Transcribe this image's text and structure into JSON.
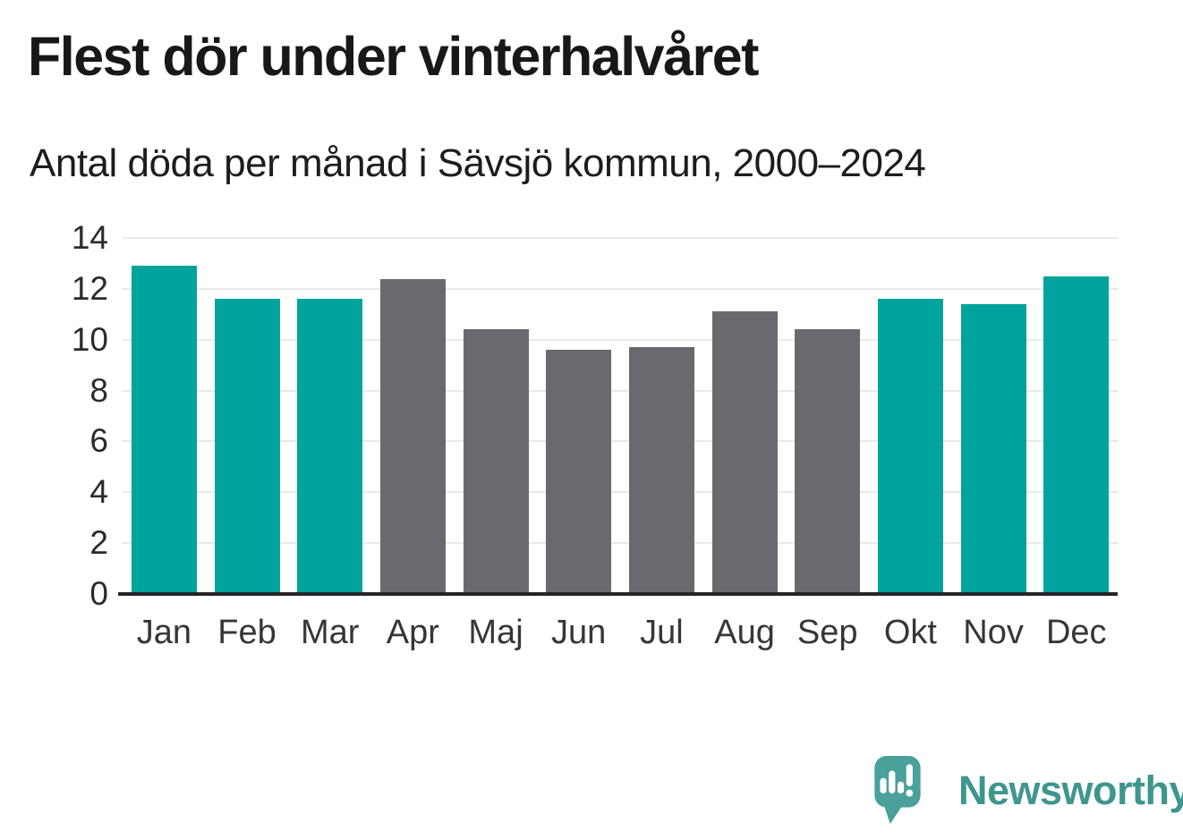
{
  "chart_data": {
    "type": "bar",
    "title": "Flest dör under vinterhalvåret",
    "subtitle": "Antal döda per månad i Sävsjö kommun, 2000–2024",
    "categories": [
      "Jan",
      "Feb",
      "Mar",
      "Apr",
      "Maj",
      "Jun",
      "Jul",
      "Aug",
      "Sep",
      "Okt",
      "Nov",
      "Dec"
    ],
    "values": [
      12.9,
      11.6,
      11.6,
      12.4,
      10.4,
      9.6,
      9.7,
      11.1,
      10.4,
      11.6,
      11.4,
      12.5
    ],
    "bar_colors": [
      "#00a49c",
      "#00a49c",
      "#00a49c",
      "#6c6870",
      "#6c6870",
      "#6c6870",
      "#6c6870",
      "#6c6870",
      "#6c6870",
      "#00a49c",
      "#00a49c",
      "#00a49c"
    ],
    "palette": {
      "winter_highlight": "#00a49c",
      "summer_muted": "#6c6870",
      "gridline": "#e9e9e9",
      "baseline": "#26242a"
    },
    "xlabel": "",
    "ylabel": "",
    "ylim": [
      0,
      14
    ],
    "yticks": [
      0,
      2,
      4,
      6,
      8,
      10,
      12,
      14
    ],
    "grid": true,
    "legend": "none"
  },
  "footer": {
    "brand": "Newsworthy",
    "brand_color": "#3e968f",
    "logo_color": "#4aa09a",
    "logo_icon": "newsworthy-speech-bubble-barchart-icon"
  }
}
